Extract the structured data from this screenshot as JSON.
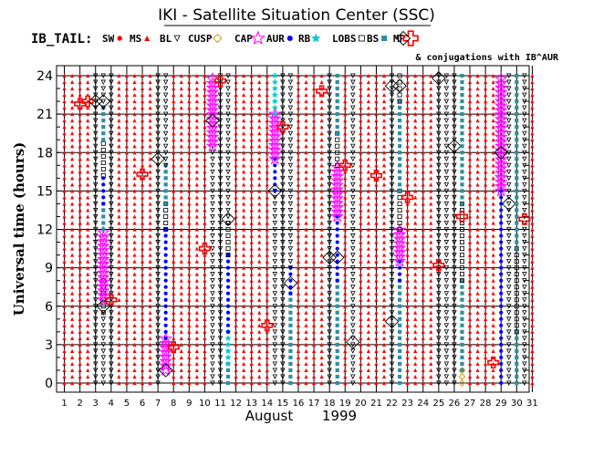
{
  "chart_data": {
    "type": "scatter",
    "title": "IKI - Satellite Situation Center (SSC)",
    "legend_title": "IB_TAIL:",
    "legend": [
      {
        "label": "SW",
        "marker": "dot",
        "color": "#ff0000"
      },
      {
        "label": "MS",
        "marker": "triangle-up",
        "color": "#ff0000"
      },
      {
        "label": "BL",
        "marker": "triangle-down-open",
        "color": "#000000"
      },
      {
        "label": "CUSP",
        "marker": "diamond-open",
        "color": "#d4a017"
      },
      {
        "label": "CAP",
        "marker": "star-open",
        "color": "#ff00ff"
      },
      {
        "label": "AUR",
        "marker": "dot",
        "color": "#0000ff"
      },
      {
        "label": "RB",
        "marker": "star-filled",
        "color": "#00c8d8"
      },
      {
        "label": "LOBS",
        "marker": "square-open",
        "color": "#000000"
      },
      {
        "label": "BS",
        "marker": "square-filled",
        "color": "#2f8f9f"
      },
      {
        "label": "MP",
        "marker": "cross-open",
        "color": "#ff0000"
      }
    ],
    "conjunction_note": "& conjugations with IB^AUR",
    "xlabel": "August",
    "xlabel_year": "1999",
    "ylabel": "Universal time (hours)",
    "x_ticks": [
      "1",
      "2",
      "3",
      "4",
      "5",
      "6",
      "7",
      "8",
      "9",
      "10",
      "11",
      "12",
      "13",
      "14",
      "15",
      "16",
      "17",
      "18",
      "19",
      "20",
      "21",
      "22",
      "23",
      "24",
      "25",
      "26",
      "27",
      "28",
      "29",
      "30",
      "31"
    ],
    "y_ticks": [
      "0",
      "3",
      "6",
      "9",
      "12",
      "15",
      "18",
      "21",
      "24"
    ],
    "xlim": [
      1,
      31
    ],
    "ylim": [
      0,
      24
    ],
    "grid": true,
    "days": [
      {
        "x": 1.0,
        "segments": [
          [
            "MS",
            0,
            24
          ]
        ],
        "markers": []
      },
      {
        "x": 1.5,
        "segments": [
          [
            "MS",
            0,
            24
          ]
        ],
        "markers": []
      },
      {
        "x": 2.0,
        "segments": [
          [
            "MS",
            0,
            24
          ]
        ],
        "markers": [
          [
            "MP",
            21.8
          ]
        ]
      },
      {
        "x": 2.5,
        "segments": [
          [
            "MS",
            0,
            24
          ]
        ],
        "markers": [
          [
            "MP",
            22.0
          ]
        ]
      },
      {
        "x": 3.0,
        "segments": [
          [
            "BL",
            0,
            24
          ]
        ],
        "markers": [
          [
            "CONJ",
            22.0
          ]
        ]
      },
      {
        "x": 3.5,
        "segments": [
          [
            "BL",
            0,
            5.5
          ],
          [
            "LOBS",
            5.5,
            8
          ],
          [
            "CAP",
            6.5,
            12
          ],
          [
            "BS",
            12,
            14
          ],
          [
            "AUR",
            14,
            16.2
          ],
          [
            "LOBS",
            16.2,
            19
          ],
          [
            "BS",
            19,
            21.5
          ],
          [
            "BL",
            21.5,
            24
          ]
        ],
        "markers": [
          [
            "CONJ",
            6.0
          ],
          [
            "CONJ",
            22.0
          ]
        ]
      },
      {
        "x": 4.0,
        "segments": [
          [
            "BL",
            0,
            24
          ]
        ],
        "markers": [
          [
            "MP",
            6.5
          ]
        ]
      },
      {
        "x": 4.5,
        "segments": [
          [
            "MS",
            0,
            24
          ]
        ],
        "markers": []
      },
      {
        "x": 5.0,
        "segments": [
          [
            "MS",
            0,
            24
          ]
        ],
        "markers": []
      },
      {
        "x": 5.5,
        "segments": [
          [
            "MS",
            0,
            24
          ]
        ],
        "markers": []
      },
      {
        "x": 6.0,
        "segments": [
          [
            "MS",
            0,
            24
          ]
        ],
        "markers": [
          [
            "MP",
            16.3
          ]
        ]
      },
      {
        "x": 6.5,
        "segments": [
          [
            "MS",
            0,
            24
          ]
        ],
        "markers": []
      },
      {
        "x": 7.0,
        "segments": [
          [
            "BL",
            0,
            24
          ]
        ],
        "markers": [
          [
            "CONJ",
            17.5
          ]
        ]
      },
      {
        "x": 7.5,
        "segments": [
          [
            "CAP",
            1,
            3.5
          ],
          [
            "AUR",
            3.5,
            12
          ],
          [
            "LOBS",
            12,
            14
          ],
          [
            "BS",
            14,
            17
          ],
          [
            "BL",
            17,
            24
          ]
        ],
        "markers": [
          [
            "CONJ",
            1.0
          ]
        ]
      },
      {
        "x": 8.0,
        "segments": [
          [
            "MS",
            0,
            24
          ]
        ],
        "markers": [
          [
            "MP",
            2.8
          ]
        ]
      },
      {
        "x": 8.5,
        "segments": [
          [
            "MS",
            0,
            24
          ]
        ],
        "markers": []
      },
      {
        "x": 9.0,
        "segments": [
          [
            "MS",
            0,
            24
          ]
        ],
        "markers": []
      },
      {
        "x": 9.5,
        "segments": [
          [
            "MS",
            0,
            24
          ]
        ],
        "markers": []
      },
      {
        "x": 10.0,
        "segments": [
          [
            "MS",
            0,
            24
          ]
        ],
        "markers": [
          [
            "MP",
            10.5
          ]
        ]
      },
      {
        "x": 10.5,
        "segments": [
          [
            "BL",
            0,
            18.5
          ],
          [
            "CAP",
            18.5,
            24
          ]
        ],
        "markers": [
          [
            "CONJ",
            20.5
          ]
        ]
      },
      {
        "x": 11.0,
        "segments": [
          [
            "BL",
            0,
            24
          ]
        ],
        "markers": [
          [
            "MP",
            23.6
          ]
        ]
      },
      {
        "x": 11.5,
        "segments": [
          [
            "BS",
            0,
            1.5
          ],
          [
            "RB",
            1.5,
            4
          ],
          [
            "AUR",
            4,
            10
          ],
          [
            "LOBS",
            10,
            12.5
          ],
          [
            "BL",
            12.5,
            24
          ]
        ],
        "markers": [
          [
            "CONJ",
            12.8
          ]
        ]
      },
      {
        "x": 12.0,
        "segments": [
          [
            "MS",
            0,
            24
          ]
        ],
        "markers": []
      },
      {
        "x": 12.5,
        "segments": [
          [
            "MS",
            0,
            24
          ]
        ],
        "markers": []
      },
      {
        "x": 13.0,
        "segments": [
          [
            "MS",
            0,
            24
          ]
        ],
        "markers": []
      },
      {
        "x": 13.5,
        "segments": [
          [
            "MS",
            0,
            24
          ]
        ],
        "markers": []
      },
      {
        "x": 14.0,
        "segments": [
          [
            "MS",
            0,
            24
          ]
        ],
        "markers": [
          [
            "MP",
            4.5
          ]
        ]
      },
      {
        "x": 14.5,
        "segments": [
          [
            "BL",
            0,
            15
          ],
          [
            "AUR",
            15,
            17.5
          ],
          [
            "CAP",
            17.5,
            21
          ],
          [
            "RB",
            21,
            24
          ]
        ],
        "markers": [
          [
            "CONJ",
            15.0
          ]
        ]
      },
      {
        "x": 15.0,
        "segments": [
          [
            "BL",
            0,
            24
          ]
        ],
        "markers": [
          [
            "MP",
            20.0
          ]
        ]
      },
      {
        "x": 15.5,
        "segments": [
          [
            "BS",
            0,
            7
          ],
          [
            "AUR",
            7,
            9
          ],
          [
            "BL",
            9,
            24
          ]
        ],
        "markers": [
          [
            "CONJ",
            7.8
          ]
        ]
      },
      {
        "x": 16.0,
        "segments": [
          [
            "MS",
            0,
            24
          ]
        ],
        "markers": []
      },
      {
        "x": 16.5,
        "segments": [
          [
            "MS",
            0,
            24
          ]
        ],
        "markers": []
      },
      {
        "x": 17.0,
        "segments": [
          [
            "MS",
            0,
            24
          ]
        ],
        "markers": []
      },
      {
        "x": 17.5,
        "segments": [
          [
            "MS",
            0,
            24
          ]
        ],
        "markers": [
          [
            "MP",
            22.8
          ]
        ]
      },
      {
        "x": 18.0,
        "segments": [
          [
            "BL",
            0,
            24
          ]
        ],
        "markers": [
          [
            "CONJ",
            9.8
          ]
        ]
      },
      {
        "x": 18.5,
        "segments": [
          [
            "BS",
            0,
            8
          ],
          [
            "AUR",
            8,
            13
          ],
          [
            "CAP",
            13,
            17
          ],
          [
            "LOBS",
            17,
            19.5
          ],
          [
            "BS",
            19.5,
            24
          ]
        ],
        "markers": [
          [
            "CONJ",
            9.8
          ]
        ]
      },
      {
        "x": 19.0,
        "segments": [
          [
            "MS",
            0,
            24
          ]
        ],
        "markers": [
          [
            "MP",
            17.0
          ]
        ]
      },
      {
        "x": 19.5,
        "segments": [
          [
            "BL",
            0,
            24
          ]
        ],
        "markers": [
          [
            "CONJ",
            3.2
          ]
        ]
      },
      {
        "x": 20.0,
        "segments": [
          [
            "MS",
            0,
            24
          ]
        ],
        "markers": []
      },
      {
        "x": 20.5,
        "segments": [
          [
            "MS",
            0,
            24
          ]
        ],
        "markers": []
      },
      {
        "x": 21.0,
        "segments": [
          [
            "MS",
            0,
            24
          ]
        ],
        "markers": [
          [
            "MP",
            16.2
          ]
        ]
      },
      {
        "x": 21.5,
        "segments": [
          [
            "MS",
            0,
            24
          ]
        ],
        "markers": []
      },
      {
        "x": 22.0,
        "segments": [
          [
            "BL",
            0,
            24
          ]
        ],
        "markers": [
          [
            "CONJ",
            23.2
          ],
          [
            "CONJ",
            4.8
          ]
        ]
      },
      {
        "x": 22.5,
        "segments": [
          [
            "BS",
            0,
            8
          ],
          [
            "AUR",
            8,
            9.5
          ],
          [
            "CAP",
            9.5,
            12
          ],
          [
            "LOBS",
            12,
            15
          ],
          [
            "BS",
            15,
            22
          ],
          [
            "LOBS",
            22,
            24
          ]
        ],
        "markers": [
          [
            "CONJ",
            23.2
          ]
        ]
      },
      {
        "x": 23.0,
        "segments": [
          [
            "MS",
            0,
            24
          ]
        ],
        "markers": [
          [
            "MP",
            14.5
          ]
        ]
      },
      {
        "x": 23.5,
        "segments": [
          [
            "MS",
            0,
            24
          ]
        ],
        "markers": []
      },
      {
        "x": 24.0,
        "segments": [
          [
            "MS",
            0,
            24
          ]
        ],
        "markers": []
      },
      {
        "x": 24.5,
        "segments": [
          [
            "MS",
            0,
            24
          ]
        ],
        "markers": []
      },
      {
        "x": 25.0,
        "segments": [
          [
            "BL",
            0,
            24
          ]
        ],
        "markers": [
          [
            "CONJ",
            23.8
          ],
          [
            "MP",
            9.2
          ]
        ]
      },
      {
        "x": 25.5,
        "segments": [
          [
            "BL",
            0,
            24
          ]
        ],
        "markers": []
      },
      {
        "x": 26.0,
        "segments": [
          [
            "BL",
            0,
            24
          ]
        ],
        "markers": [
          [
            "CONJ",
            18.5
          ]
        ]
      },
      {
        "x": 26.5,
        "segments": [
          [
            "CUSP",
            0,
            1
          ],
          [
            "BS",
            1,
            8
          ],
          [
            "LOBS",
            8,
            14
          ],
          [
            "BS",
            14,
            24
          ]
        ],
        "markers": [
          [
            "MP",
            13.0
          ]
        ]
      },
      {
        "x": 27.0,
        "segments": [
          [
            "MS",
            0,
            24
          ]
        ],
        "markers": []
      },
      {
        "x": 27.5,
        "segments": [
          [
            "MS",
            0,
            24
          ]
        ],
        "markers": []
      },
      {
        "x": 28.0,
        "segments": [
          [
            "MS",
            0,
            24
          ]
        ],
        "markers": []
      },
      {
        "x": 28.5,
        "segments": [
          [
            "MS",
            0,
            24
          ]
        ],
        "markers": [
          [
            "MP",
            1.6
          ]
        ]
      },
      {
        "x": 29.0,
        "segments": [
          [
            "AUR",
            0,
            15
          ],
          [
            "CAP",
            15,
            24
          ]
        ],
        "markers": [
          [
            "CONJ",
            18.0
          ]
        ]
      },
      {
        "x": 29.5,
        "segments": [
          [
            "BL",
            0,
            24
          ]
        ],
        "markers": [
          [
            "CONJ",
            14.0
          ]
        ]
      },
      {
        "x": 30.0,
        "segments": [
          [
            "BS",
            0,
            4
          ],
          [
            "LOBS",
            4,
            10.5
          ],
          [
            "BS",
            10.5,
            24
          ]
        ],
        "markers": []
      },
      {
        "x": 30.5,
        "segments": [
          [
            "BL",
            0,
            24
          ]
        ],
        "markers": [
          [
            "MP",
            12.8
          ]
        ]
      },
      {
        "x": 31.0,
        "segments": [
          [
            "MS",
            0,
            24
          ]
        ],
        "markers": []
      }
    ]
  }
}
